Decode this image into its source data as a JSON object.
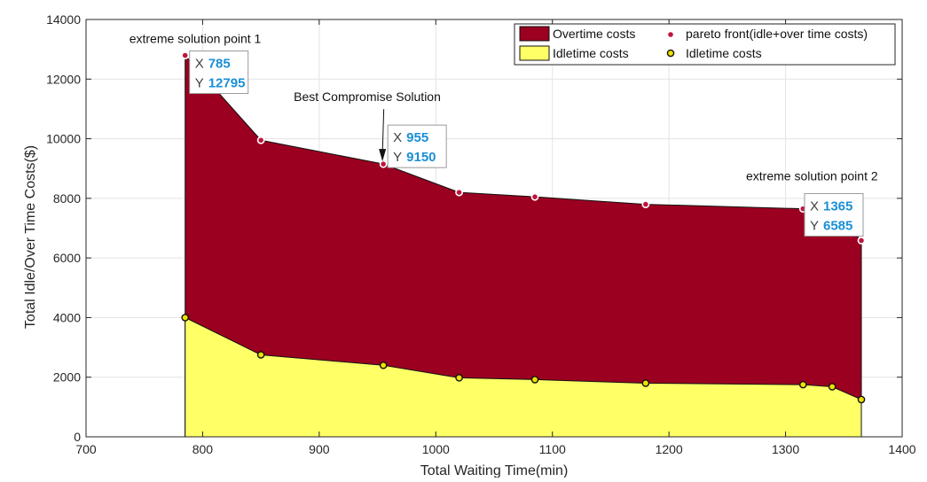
{
  "chart_data": {
    "type": "area",
    "xlabel": "Total Waiting Time(min)",
    "ylabel": "Total Idle/Over Time Costs($)",
    "xlim": [
      700,
      1400
    ],
    "ylim": [
      0,
      14000
    ],
    "xticks": [
      700,
      800,
      900,
      1000,
      1100,
      1200,
      1300,
      1400
    ],
    "yticks": [
      0,
      2000,
      4000,
      6000,
      8000,
      10000,
      12000,
      14000
    ],
    "grid": true,
    "x": [
      785,
      850,
      955,
      1020,
      1085,
      1180,
      1315,
      1340,
      1365
    ],
    "series": [
      {
        "name": "Overtime costs",
        "kind": "area",
        "color": "#9b0020",
        "values": [
          12795,
          9950,
          9150,
          8200,
          8050,
          7800,
          7650,
          7600,
          6585
        ]
      },
      {
        "name": "Idletime costs",
        "kind": "area",
        "color": "#ffff66",
        "values": [
          4000,
          2750,
          2400,
          1980,
          1920,
          1800,
          1750,
          1680,
          1250
        ]
      },
      {
        "name": "pareto front(idle+over time costs)",
        "kind": "points",
        "color": "#c0143c",
        "x": [
          785,
          850,
          955,
          1020,
          1085,
          1180,
          1315,
          1365
        ],
        "values": [
          12795,
          9950,
          9150,
          8200,
          8050,
          7800,
          7650,
          6585
        ]
      },
      {
        "name": "Idletime costs",
        "kind": "points",
        "color": "#f0e000",
        "x": [
          785,
          850,
          955,
          1020,
          1085,
          1180,
          1315,
          1340,
          1365
        ],
        "values": [
          4000,
          2750,
          2400,
          1980,
          1920,
          1800,
          1750,
          1680,
          1250
        ]
      }
    ],
    "legend_position": "top-right",
    "annotations": [
      {
        "text": "extreme solution point 1",
        "x": 785,
        "y": 12795
      },
      {
        "text": "Best Compromise Solution",
        "x": 955,
        "y": 9150
      },
      {
        "text": "extreme solution point 2",
        "x": 1365,
        "y": 6585
      }
    ],
    "datatips": [
      {
        "x": 785,
        "y": 12795,
        "x_label": "X",
        "y_label": "Y",
        "x_text": "785",
        "y_text": "12795"
      },
      {
        "x": 955,
        "y": 9150,
        "x_label": "X",
        "y_label": "Y",
        "x_text": "955",
        "y_text": "9150"
      },
      {
        "x": 1365,
        "y": 6585,
        "x_label": "X",
        "y_label": "Y",
        "x_text": "1365",
        "y_text": "6585"
      }
    ]
  }
}
